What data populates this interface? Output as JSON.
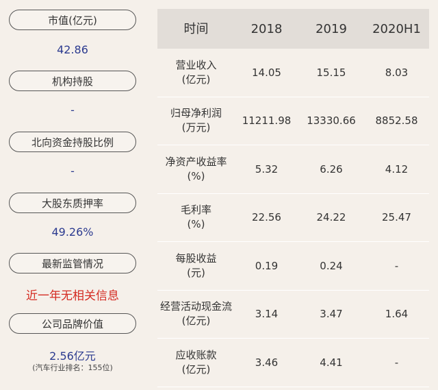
{
  "left": {
    "items": [
      {
        "label": "市值(亿元)",
        "value": "42.86"
      },
      {
        "label": "机构持股",
        "value": "-"
      },
      {
        "label": "北向资金持股比例",
        "value": "-"
      },
      {
        "label": "大股东质押率",
        "value": "49.26%"
      },
      {
        "label": "最新监管情况",
        "value": "近一年无相关信息"
      },
      {
        "label": "公司品牌价值",
        "value": "2.56亿元",
        "note": "(汽车行业排名：155位)"
      }
    ]
  },
  "table": {
    "headers": [
      "时间",
      "2018",
      "2019",
      "2020H1"
    ],
    "rows": [
      {
        "name": "营业收入",
        "unit": "(亿元)",
        "values": [
          "14.05",
          "15.15",
          "8.03"
        ]
      },
      {
        "name": "归母净利润",
        "unit": "(万元)",
        "values": [
          "11211.98",
          "13330.66",
          "8852.58"
        ]
      },
      {
        "name": "净资产收益率",
        "unit": "(%)",
        "values": [
          "5.32",
          "6.26",
          "4.12"
        ]
      },
      {
        "name": "毛利率",
        "unit": "(%)",
        "values": [
          "22.56",
          "24.22",
          "25.47"
        ]
      },
      {
        "name": "每股收益",
        "unit": "(元)",
        "values": [
          "0.19",
          "0.24",
          "-"
        ]
      },
      {
        "name": "经营活动现金流",
        "unit": "(亿元)",
        "values": [
          "3.14",
          "3.47",
          "1.64"
        ]
      },
      {
        "name": "应收账款",
        "unit": "(亿元)",
        "values": [
          "3.46",
          "4.41",
          "-"
        ]
      }
    ]
  }
}
